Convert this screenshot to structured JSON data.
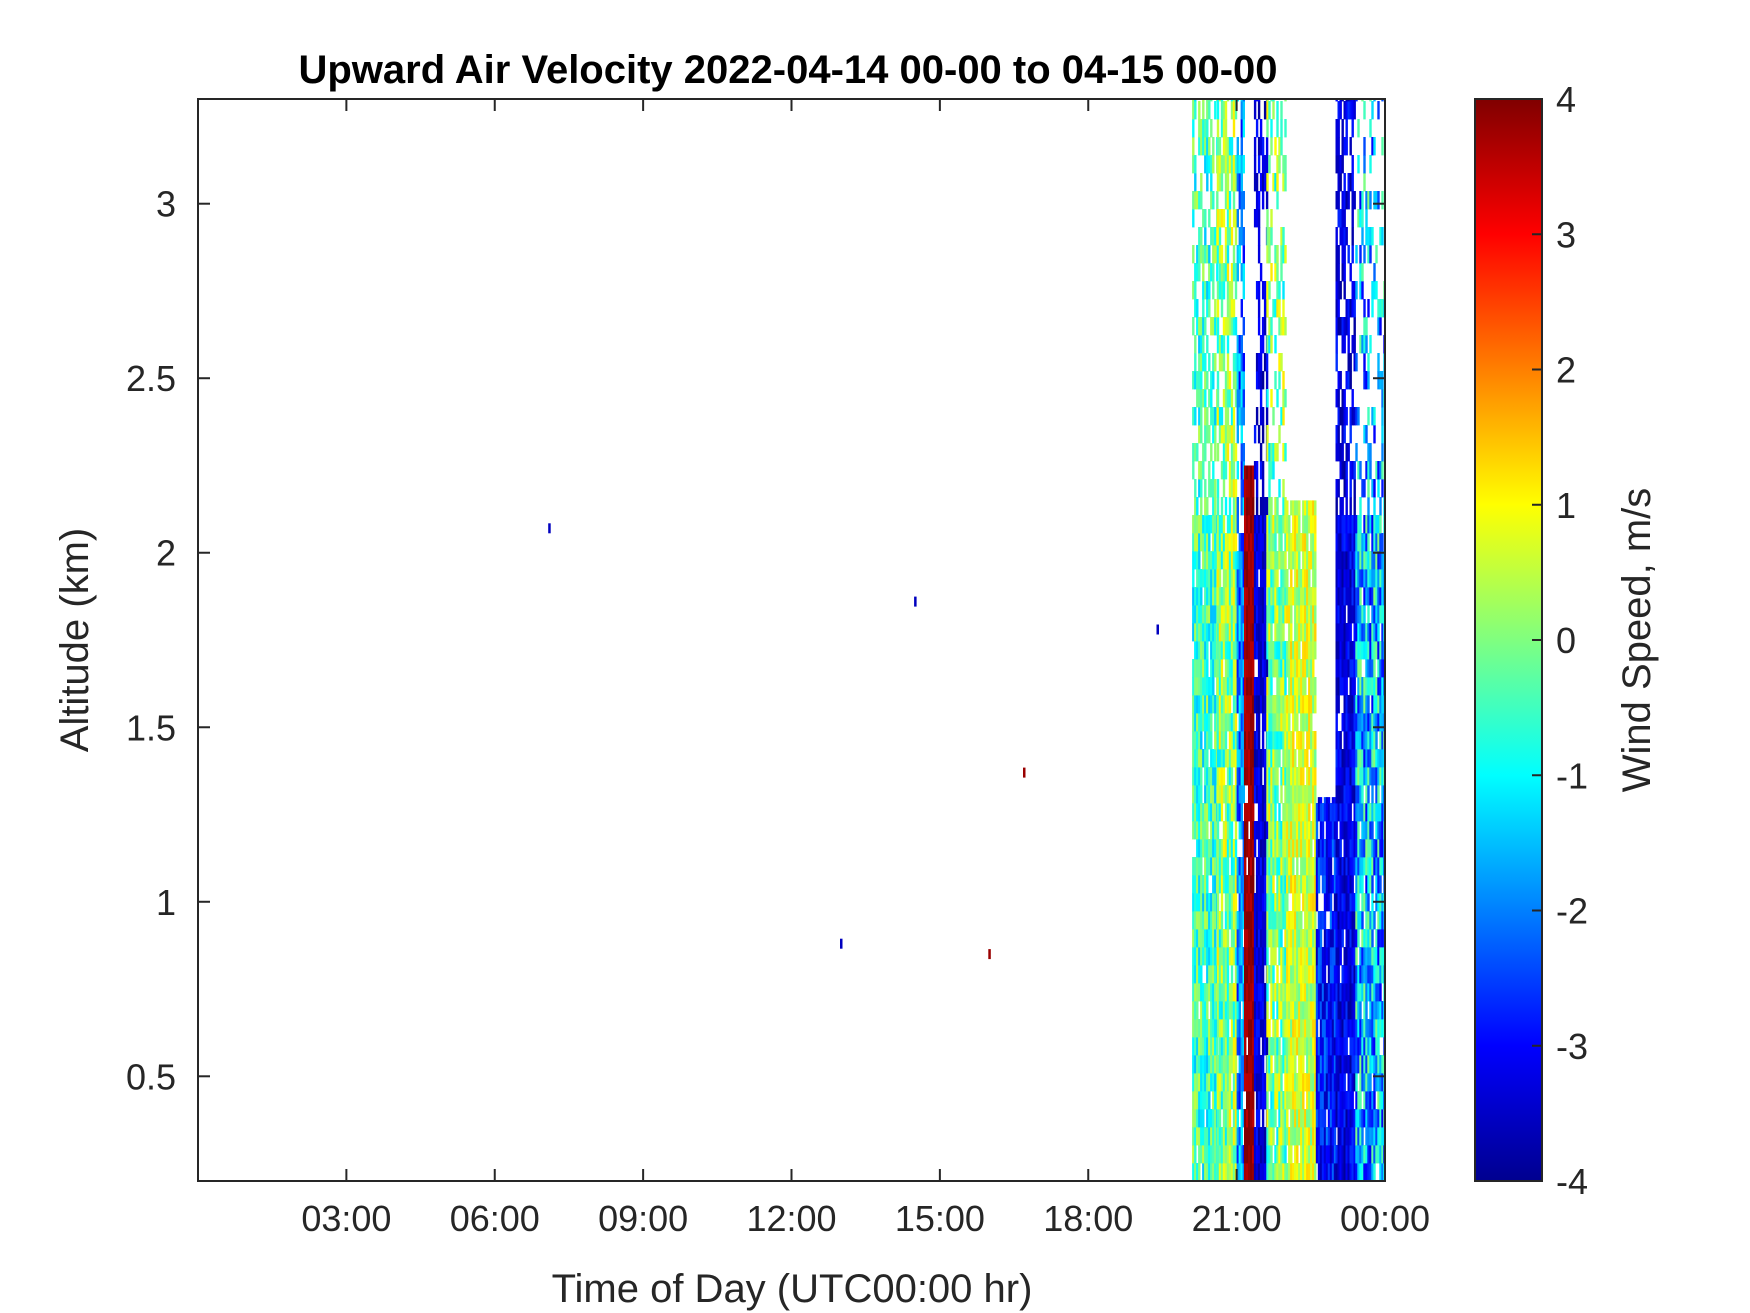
{
  "chart_data": {
    "type": "heatmap",
    "title": "Upward Air Velocity 2022-04-14 00-00 to 04-15 00-00",
    "xlabel": "Time of Day (UTC00:00 hr)",
    "ylabel": "Altitude (km)",
    "colorbar_label": "Wind Speed, m/s",
    "colormap": "jet",
    "x_unit": "hours",
    "xlim": [
      0,
      24
    ],
    "ylim": [
      0.2,
      3.3
    ],
    "clim": [
      -4,
      4
    ],
    "grid": false,
    "x_ticks": [
      3,
      6,
      9,
      12,
      15,
      18,
      21,
      24
    ],
    "x_tick_labels": [
      "03:00",
      "06:00",
      "09:00",
      "12:00",
      "15:00",
      "18:00",
      "21:00",
      "00:00"
    ],
    "y_ticks": [
      0.5,
      1,
      1.5,
      2,
      2.5,
      3
    ],
    "y_tick_labels": [
      "0.5",
      "1",
      "1.5",
      "2",
      "2.5",
      "3"
    ],
    "cbar_ticks": [
      -4,
      -3,
      -2,
      -1,
      0,
      1,
      2,
      3,
      4
    ],
    "cbar_tick_labels": [
      "-4",
      "-3",
      "-2",
      "-1",
      "0",
      "1",
      "2",
      "3",
      "4"
    ],
    "isolated_points": [
      {
        "time_h": 7.1,
        "alt_km": 2.07,
        "value": -3.5
      },
      {
        "time_h": 14.5,
        "alt_km": 1.86,
        "value": -3.5
      },
      {
        "time_h": 19.4,
        "alt_km": 1.78,
        "value": -3.5
      },
      {
        "time_h": 16.7,
        "alt_km": 1.37,
        "value": 3.8
      },
      {
        "time_h": 13.0,
        "alt_km": 0.88,
        "value": -3.5
      },
      {
        "time_h": 16.0,
        "alt_km": 0.85,
        "value": 3.8
      }
    ],
    "data_bands": [
      {
        "t0": 20.1,
        "t1": 20.6,
        "alt_min": 0.2,
        "alt_max": 3.3,
        "mean": -0.5,
        "spread": 1.0,
        "top_fill": 0.6
      },
      {
        "t0": 20.6,
        "t1": 21.0,
        "alt_min": 0.2,
        "alt_max": 3.3,
        "mean": 0.0,
        "spread": 1.2,
        "top_fill": 0.7
      },
      {
        "t0": 21.0,
        "t1": 21.15,
        "alt_min": 0.2,
        "alt_max": 3.3,
        "mean": -2.0,
        "spread": 1.0,
        "top_fill": 0.6
      },
      {
        "t0": 21.15,
        "t1": 21.35,
        "alt_min": 0.2,
        "alt_max": 2.25,
        "mean": 3.8,
        "spread": 0.3,
        "top_fill": 1.0
      },
      {
        "t0": 21.35,
        "t1": 21.6,
        "alt_min": 0.2,
        "alt_max": 3.3,
        "mean": -3.3,
        "spread": 0.5,
        "top_fill": 0.5
      },
      {
        "t0": 21.6,
        "t1": 22.0,
        "alt_min": 0.2,
        "alt_max": 3.3,
        "mean": 0.0,
        "spread": 1.2,
        "top_fill": 0.4
      },
      {
        "t0": 22.0,
        "t1": 22.6,
        "alt_min": 0.2,
        "alt_max": 2.15,
        "mean": 0.6,
        "spread": 0.8,
        "top_fill": 0.9
      },
      {
        "t0": 22.6,
        "t1": 23.0,
        "alt_min": 0.2,
        "alt_max": 1.3,
        "mean": -2.8,
        "spread": 0.8,
        "top_fill": 0.8
      },
      {
        "t0": 23.0,
        "t1": 23.4,
        "alt_min": 0.2,
        "alt_max": 3.3,
        "mean": -3.2,
        "spread": 0.6,
        "top_fill": 0.6
      },
      {
        "t0": 23.4,
        "t1": 24.0,
        "alt_min": 0.2,
        "alt_max": 3.3,
        "mean": -1.5,
        "spread": 1.6,
        "top_fill": 0.3
      }
    ]
  }
}
